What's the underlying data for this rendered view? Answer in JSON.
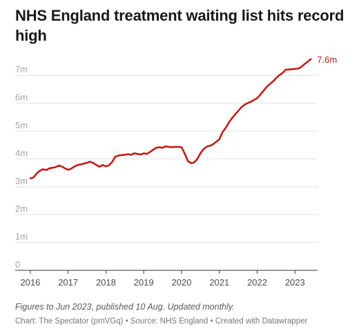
{
  "chart_data": {
    "type": "line",
    "title": "NHS England treatment waiting list hits record high",
    "y_tick_labels": [
      "0",
      "1m",
      "2m",
      "3m",
      "4m",
      "5m",
      "6m",
      "7m"
    ],
    "x_tick_labels": [
      "2016",
      "2017",
      "2018",
      "2019",
      "2020",
      "2021",
      "2022",
      "2023"
    ],
    "ylim": [
      0,
      7.6
    ],
    "xlim": [
      2015.6,
      2023.6
    ],
    "grid": true,
    "line_color": "#c21b17",
    "end_label": "7.6m",
    "series": [
      {
        "x": [
          2016.0,
          2016.08,
          2016.17,
          2016.25,
          2016.33,
          2016.42,
          2016.5,
          2016.58,
          2016.67,
          2016.75,
          2016.83,
          2016.92,
          2017.0,
          2017.08,
          2017.17,
          2017.25,
          2017.33,
          2017.42,
          2017.5,
          2017.58,
          2017.67,
          2017.75,
          2017.83,
          2017.92,
          2018.0,
          2018.08,
          2018.17,
          2018.25,
          2018.33,
          2018.42,
          2018.5,
          2018.58,
          2018.67,
          2018.75,
          2018.83,
          2018.92,
          2019.0,
          2019.08,
          2019.17,
          2019.25,
          2019.33,
          2019.42,
          2019.5,
          2019.58,
          2019.67,
          2019.75,
          2019.83,
          2019.92,
          2020.0,
          2020.08,
          2020.17,
          2020.25,
          2020.33,
          2020.42,
          2020.5,
          2020.58,
          2020.67,
          2020.75,
          2020.83,
          2020.92,
          2021.0,
          2021.08,
          2021.17,
          2021.25,
          2021.33,
          2021.42,
          2021.5,
          2021.58,
          2021.67,
          2021.75,
          2021.83,
          2021.92,
          2022.0,
          2022.08,
          2022.17,
          2022.25,
          2022.33,
          2022.42,
          2022.5,
          2022.58,
          2022.67,
          2022.75,
          2022.83,
          2022.92,
          2023.0,
          2023.08,
          2023.17,
          2023.25,
          2023.33,
          2023.42
        ],
        "values": [
          3.3,
          3.33,
          3.48,
          3.57,
          3.63,
          3.6,
          3.66,
          3.68,
          3.7,
          3.76,
          3.73,
          3.66,
          3.61,
          3.65,
          3.73,
          3.78,
          3.8,
          3.83,
          3.86,
          3.9,
          3.85,
          3.78,
          3.72,
          3.78,
          3.73,
          3.77,
          3.9,
          4.08,
          4.12,
          4.14,
          4.15,
          4.17,
          4.15,
          4.2,
          4.18,
          4.16,
          4.2,
          4.18,
          4.25,
          4.33,
          4.4,
          4.42,
          4.4,
          4.45,
          4.43,
          4.42,
          4.43,
          4.43,
          4.42,
          4.2,
          3.92,
          3.85,
          3.87,
          4.0,
          4.2,
          4.35,
          4.44,
          4.47,
          4.52,
          4.62,
          4.7,
          4.95,
          5.12,
          5.3,
          5.45,
          5.6,
          5.72,
          5.85,
          5.95,
          6.0,
          6.05,
          6.12,
          6.18,
          6.3,
          6.45,
          6.58,
          6.68,
          6.78,
          6.9,
          7.0,
          7.08,
          7.2,
          7.21,
          7.22,
          7.23,
          7.24,
          7.3,
          7.4,
          7.48,
          7.58
        ]
      }
    ]
  },
  "footer": {
    "note": "Figures to Jun 2023, published 10 Aug. Updated monthly.",
    "credits": "Chart: The Spectator (pmVGq) • Source: NHS England • Created with Datawrapper"
  }
}
